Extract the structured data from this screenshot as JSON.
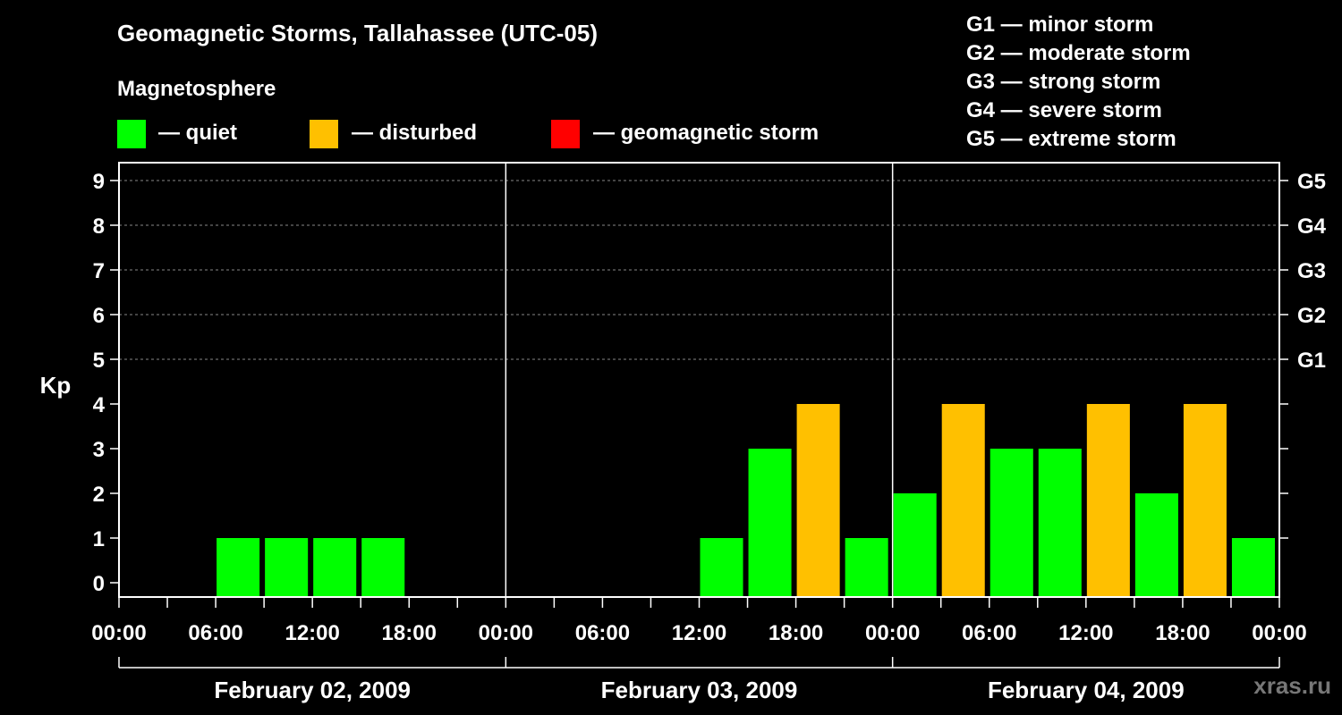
{
  "title": "Geomagnetic Storms, Tallahassee (UTC-05)",
  "subtitle": "Magnetosphere",
  "legend": [
    {
      "label": "— quiet",
      "color": "#00FF00"
    },
    {
      "label": "— disturbed",
      "color": "#FFC000"
    },
    {
      "label": "— geomagnetic storm",
      "color": "#FF0000"
    }
  ],
  "storm_scale": [
    "G1 — minor storm",
    "G2 — moderate storm",
    "G3 — strong storm",
    "G4 — severe storm",
    "G5 — extreme storm"
  ],
  "brand": "xras.ru",
  "chart_data": {
    "type": "bar",
    "ylabel": "Kp",
    "ylim": [
      0,
      9
    ],
    "y_ticks": [
      0,
      1,
      2,
      3,
      4,
      5,
      6,
      7,
      8,
      9
    ],
    "right_ticks": [
      {
        "kp": 5,
        "label": "G1"
      },
      {
        "kp": 6,
        "label": "G2"
      },
      {
        "kp": 7,
        "label": "G3"
      },
      {
        "kp": 8,
        "label": "G4"
      },
      {
        "kp": 9,
        "label": "G5"
      }
    ],
    "x_tick_labels": [
      "00:00",
      "06:00",
      "12:00",
      "18:00",
      "00:00",
      "06:00",
      "12:00",
      "18:00",
      "00:00",
      "06:00",
      "12:00",
      "18:00",
      "00:00"
    ],
    "days": [
      "February 02, 2009",
      "February 03, 2009",
      "February 04, 2009"
    ],
    "interval_hours": 3,
    "colors": {
      "quiet": "#00FF00",
      "disturbed": "#FFC000",
      "storm": "#FF0000"
    },
    "series": [
      {
        "day": "February 02, 2009",
        "start_hours": [
          0,
          3,
          6,
          9,
          12,
          15,
          18,
          21
        ],
        "values": [
          0,
          0,
          1,
          1,
          1,
          1,
          0,
          0
        ]
      },
      {
        "day": "February 03, 2009",
        "start_hours": [
          0,
          3,
          6,
          9,
          12,
          15,
          18,
          21
        ],
        "values": [
          0,
          0,
          0,
          0,
          1,
          3,
          4,
          1
        ]
      },
      {
        "day": "February 04, 2009",
        "start_hours": [
          0,
          3,
          6,
          9,
          12,
          15,
          18,
          21
        ],
        "values": [
          2,
          4,
          3,
          3,
          4,
          2,
          4,
          1
        ]
      }
    ],
    "grid": true
  }
}
